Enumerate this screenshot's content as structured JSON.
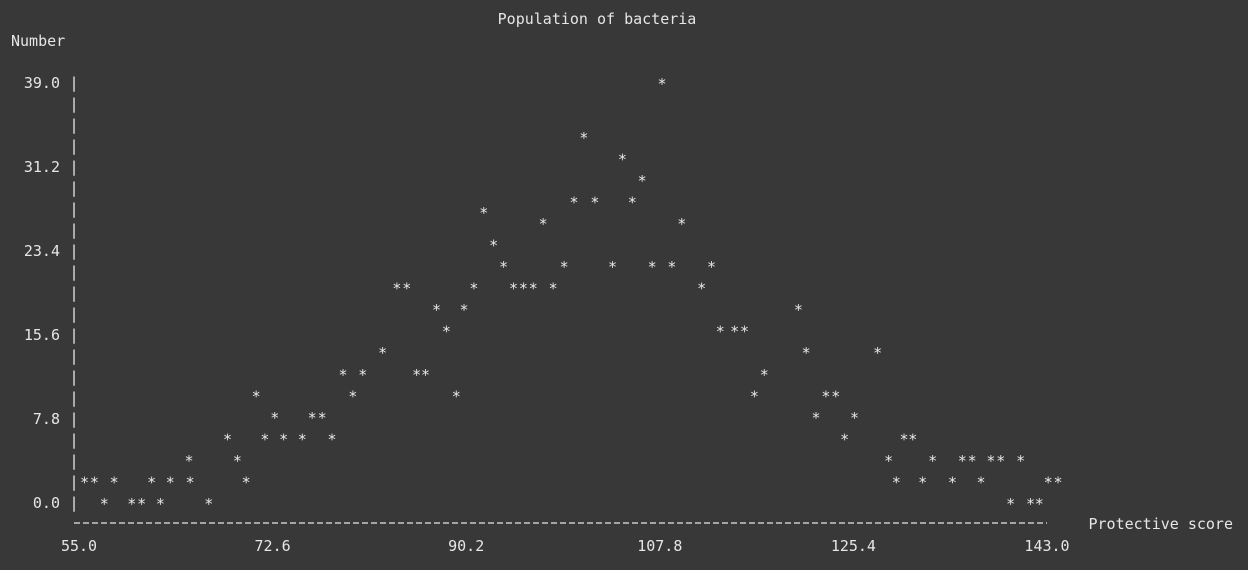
{
  "chart_data": {
    "type": "scatter",
    "style": "ascii",
    "title": "Population of bacteria",
    "xlabel": "Protective score",
    "ylabel": "Number",
    "xlim": [
      55.0,
      143.0
    ],
    "ylim": [
      0.0,
      39.0
    ],
    "x_ticks": [
      "55.0",
      "72.6",
      "90.2",
      "107.8",
      "125.4",
      "143.0"
    ],
    "y_ticks": [
      "39.0",
      "31.2",
      "23.4",
      "15.6",
      "7.8",
      "0.0"
    ],
    "marker": "*",
    "colors": {
      "background": "#383838",
      "foreground": "#e6e6e6"
    },
    "points": [
      [
        55.5,
        2
      ],
      [
        56.4,
        2
      ],
      [
        57.3,
        0
      ],
      [
        58.2,
        2
      ],
      [
        59.8,
        0
      ],
      [
        60.7,
        0
      ],
      [
        61.6,
        2
      ],
      [
        62.4,
        0
      ],
      [
        63.3,
        2
      ],
      [
        65.0,
        4
      ],
      [
        65.1,
        2
      ],
      [
        66.8,
        0
      ],
      [
        68.5,
        6
      ],
      [
        69.4,
        4
      ],
      [
        70.2,
        2
      ],
      [
        71.1,
        10
      ],
      [
        71.9,
        6
      ],
      [
        72.8,
        8
      ],
      [
        73.6,
        6
      ],
      [
        75.3,
        6
      ],
      [
        76.2,
        8
      ],
      [
        77.1,
        8
      ],
      [
        78.0,
        6
      ],
      [
        79.0,
        12
      ],
      [
        79.9,
        10
      ],
      [
        80.8,
        12
      ],
      [
        82.6,
        14
      ],
      [
        83.9,
        20
      ],
      [
        84.8,
        20
      ],
      [
        85.7,
        12
      ],
      [
        86.5,
        12
      ],
      [
        87.5,
        18
      ],
      [
        88.4,
        16
      ],
      [
        89.3,
        10
      ],
      [
        90.0,
        18
      ],
      [
        90.9,
        20
      ],
      [
        91.8,
        27
      ],
      [
        92.7,
        24
      ],
      [
        93.6,
        22
      ],
      [
        94.5,
        20
      ],
      [
        95.4,
        20
      ],
      [
        96.3,
        20
      ],
      [
        97.2,
        26
      ],
      [
        98.1,
        20
      ],
      [
        99.1,
        22
      ],
      [
        100.0,
        28
      ],
      [
        100.9,
        34
      ],
      [
        101.9,
        28
      ],
      [
        103.5,
        22
      ],
      [
        104.4,
        32
      ],
      [
        105.3,
        28
      ],
      [
        106.2,
        30
      ],
      [
        107.1,
        22
      ],
      [
        108.0,
        39
      ],
      [
        108.9,
        22
      ],
      [
        109.8,
        26
      ],
      [
        111.6,
        20
      ],
      [
        112.5,
        22
      ],
      [
        113.3,
        16
      ],
      [
        114.6,
        16
      ],
      [
        115.5,
        16
      ],
      [
        116.4,
        10
      ],
      [
        117.3,
        12
      ],
      [
        120.4,
        18
      ],
      [
        121.1,
        14
      ],
      [
        122.0,
        8
      ],
      [
        122.9,
        10
      ],
      [
        123.8,
        10
      ],
      [
        124.6,
        6
      ],
      [
        125.5,
        8
      ],
      [
        127.6,
        14
      ],
      [
        128.6,
        4
      ],
      [
        129.3,
        2
      ],
      [
        130.0,
        6
      ],
      [
        130.8,
        6
      ],
      [
        131.7,
        2
      ],
      [
        132.6,
        4
      ],
      [
        134.4,
        2
      ],
      [
        135.3,
        4
      ],
      [
        136.2,
        4
      ],
      [
        137.0,
        2
      ],
      [
        137.9,
        4
      ],
      [
        138.8,
        4
      ],
      [
        139.7,
        0
      ],
      [
        140.6,
        4
      ],
      [
        141.5,
        0
      ],
      [
        142.3,
        0
      ],
      [
        143.1,
        2
      ],
      [
        144.0,
        2
      ]
    ]
  }
}
